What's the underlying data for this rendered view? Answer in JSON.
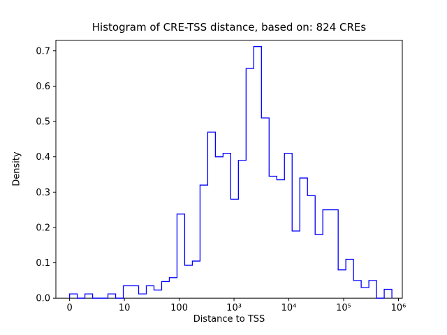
{
  "chart_data": {
    "type": "histogram-step",
    "title": "Histogram of CRE-TSS distance, based on: 824 CREs",
    "xlabel": "Distance to TSS",
    "ylabel": "Density",
    "n_samples": 824,
    "x_scale": "symlog",
    "line_color": "#0000ff",
    "axis_color": "#000000",
    "background_color": "#ffffff",
    "xlim_symlog": [
      -0.25,
      6.07
    ],
    "ylim": [
      0,
      0.73
    ],
    "x_ticks": [
      {
        "pos": 0,
        "label": "0"
      },
      {
        "pos": 1,
        "label": "10"
      },
      {
        "pos": 2,
        "label": "100"
      },
      {
        "pos": 3,
        "label": "10³"
      },
      {
        "pos": 4,
        "label": "10⁴"
      },
      {
        "pos": 5,
        "label": "10⁵"
      },
      {
        "pos": 6,
        "label": "10⁶"
      }
    ],
    "y_ticks": [
      "0.0",
      "0.1",
      "0.2",
      "0.3",
      "0.4",
      "0.5",
      "0.6",
      "0.7"
    ],
    "bin_edges_symlog": [
      0.0,
      0.14,
      0.28,
      0.42,
      0.56,
      0.7,
      0.84,
      0.98,
      1.12,
      1.26,
      1.4,
      1.54,
      1.68,
      1.82,
      1.96,
      2.1,
      2.24,
      2.38,
      2.52,
      2.66,
      2.8,
      2.94,
      3.08,
      3.22,
      3.36,
      3.5,
      3.64,
      3.78,
      3.92,
      4.06,
      4.2,
      4.34,
      4.48,
      4.62,
      4.76,
      4.9,
      5.04,
      5.18,
      5.32,
      5.46,
      5.6,
      5.74,
      5.88
    ],
    "densities": [
      0.012,
      0.0,
      0.012,
      0.0,
      0.0,
      0.012,
      0.0,
      0.035,
      0.035,
      0.012,
      0.035,
      0.023,
      0.047,
      0.058,
      0.238,
      0.093,
      0.105,
      0.32,
      0.47,
      0.4,
      0.41,
      0.28,
      0.39,
      0.65,
      0.712,
      0.51,
      0.345,
      0.335,
      0.41,
      0.19,
      0.34,
      0.29,
      0.18,
      0.25,
      0.25,
      0.08,
      0.11,
      0.05,
      0.03,
      0.05,
      0.0,
      0.025
    ]
  }
}
